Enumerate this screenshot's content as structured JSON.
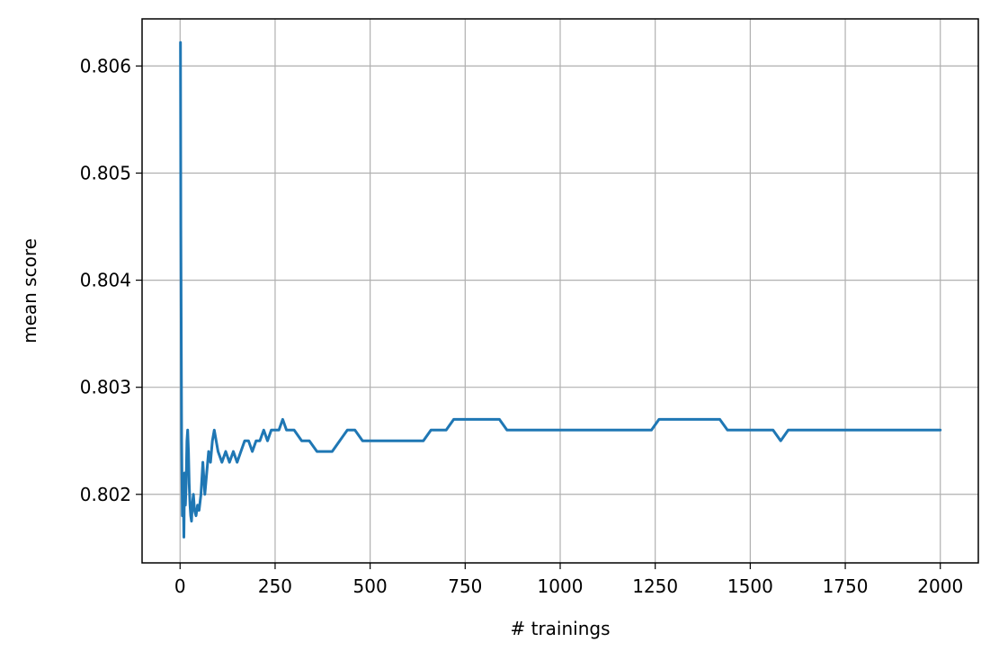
{
  "chart_data": {
    "type": "line",
    "title": "",
    "xlabel": "# trainings",
    "ylabel": "mean score",
    "xlim": [
      -100,
      2100
    ],
    "ylim": [
      0.80136,
      0.80644
    ],
    "xticks": [
      0,
      250,
      500,
      750,
      1000,
      1250,
      1500,
      1750,
      2000
    ],
    "xtick_labels": [
      "0",
      "250",
      "500",
      "750",
      "1000",
      "1250",
      "1500",
      "1750",
      "2000"
    ],
    "yticks": [
      0.802,
      0.803,
      0.804,
      0.805,
      0.806
    ],
    "ytick_labels": [
      "0.802",
      "0.803",
      "0.804",
      "0.805",
      "0.806"
    ],
    "grid": true,
    "series": [
      {
        "color": "#1f77b4",
        "x": [
          1,
          2,
          4,
          6,
          8,
          10,
          12,
          14,
          16,
          18,
          20,
          22,
          24,
          26,
          28,
          30,
          32,
          35,
          38,
          42,
          46,
          50,
          55,
          60,
          65,
          70,
          75,
          80,
          85,
          90,
          95,
          100,
          110,
          120,
          130,
          140,
          150,
          160,
          170,
          180,
          190,
          200,
          210,
          220,
          230,
          240,
          250,
          260,
          270,
          280,
          300,
          320,
          340,
          360,
          380,
          400,
          420,
          440,
          460,
          480,
          500,
          520,
          540,
          560,
          580,
          600,
          620,
          640,
          660,
          680,
          700,
          720,
          740,
          760,
          780,
          800,
          820,
          840,
          860,
          880,
          900,
          920,
          940,
          960,
          980,
          1000,
          1020,
          1040,
          1060,
          1080,
          1100,
          1120,
          1140,
          1160,
          1180,
          1200,
          1220,
          1240,
          1260,
          1280,
          1300,
          1320,
          1340,
          1360,
          1380,
          1400,
          1420,
          1440,
          1460,
          1480,
          1500,
          1520,
          1540,
          1560,
          1580,
          1600,
          1620,
          1640,
          1660,
          1680,
          1700,
          1720,
          1740,
          1760,
          1780,
          1800,
          1820,
          1840,
          1860,
          1880,
          1900,
          1920,
          1940,
          1960,
          1980,
          2000
        ],
        "y": [
          0.80622,
          0.8045,
          0.8025,
          0.8018,
          0.8021,
          0.8016,
          0.8022,
          0.8019,
          0.8021,
          0.8025,
          0.8026,
          0.8024,
          0.8021,
          0.8019,
          0.8018,
          0.80175,
          0.8019,
          0.802,
          0.80185,
          0.8018,
          0.8019,
          0.80185,
          0.802,
          0.8023,
          0.802,
          0.8022,
          0.8024,
          0.8023,
          0.8025,
          0.8026,
          0.8025,
          0.8024,
          0.8023,
          0.8024,
          0.8023,
          0.8024,
          0.8023,
          0.8024,
          0.8025,
          0.8025,
          0.8024,
          0.8025,
          0.8025,
          0.8026,
          0.8025,
          0.8026,
          0.8026,
          0.8026,
          0.8027,
          0.8026,
          0.8026,
          0.8025,
          0.8025,
          0.8024,
          0.8024,
          0.8024,
          0.8025,
          0.8026,
          0.8026,
          0.8025,
          0.8025,
          0.8025,
          0.8025,
          0.8025,
          0.8025,
          0.8025,
          0.8025,
          0.8025,
          0.8026,
          0.8026,
          0.8026,
          0.8027,
          0.8027,
          0.8027,
          0.8027,
          0.8027,
          0.8027,
          0.8027,
          0.8026,
          0.8026,
          0.8026,
          0.8026,
          0.8026,
          0.8026,
          0.8026,
          0.8026,
          0.8026,
          0.8026,
          0.8026,
          0.8026,
          0.8026,
          0.8026,
          0.8026,
          0.8026,
          0.8026,
          0.8026,
          0.8026,
          0.8026,
          0.8027,
          0.8027,
          0.8027,
          0.8027,
          0.8027,
          0.8027,
          0.8027,
          0.8027,
          0.8027,
          0.8026,
          0.8026,
          0.8026,
          0.8026,
          0.8026,
          0.8026,
          0.8026,
          0.8025,
          0.8026,
          0.8026,
          0.8026,
          0.8026,
          0.8026,
          0.8026,
          0.8026,
          0.8026,
          0.8026,
          0.8026,
          0.8026,
          0.8026,
          0.8026,
          0.8026,
          0.8026,
          0.8026,
          0.8026,
          0.8026,
          0.8026,
          0.8026,
          0.8026
        ]
      }
    ]
  }
}
